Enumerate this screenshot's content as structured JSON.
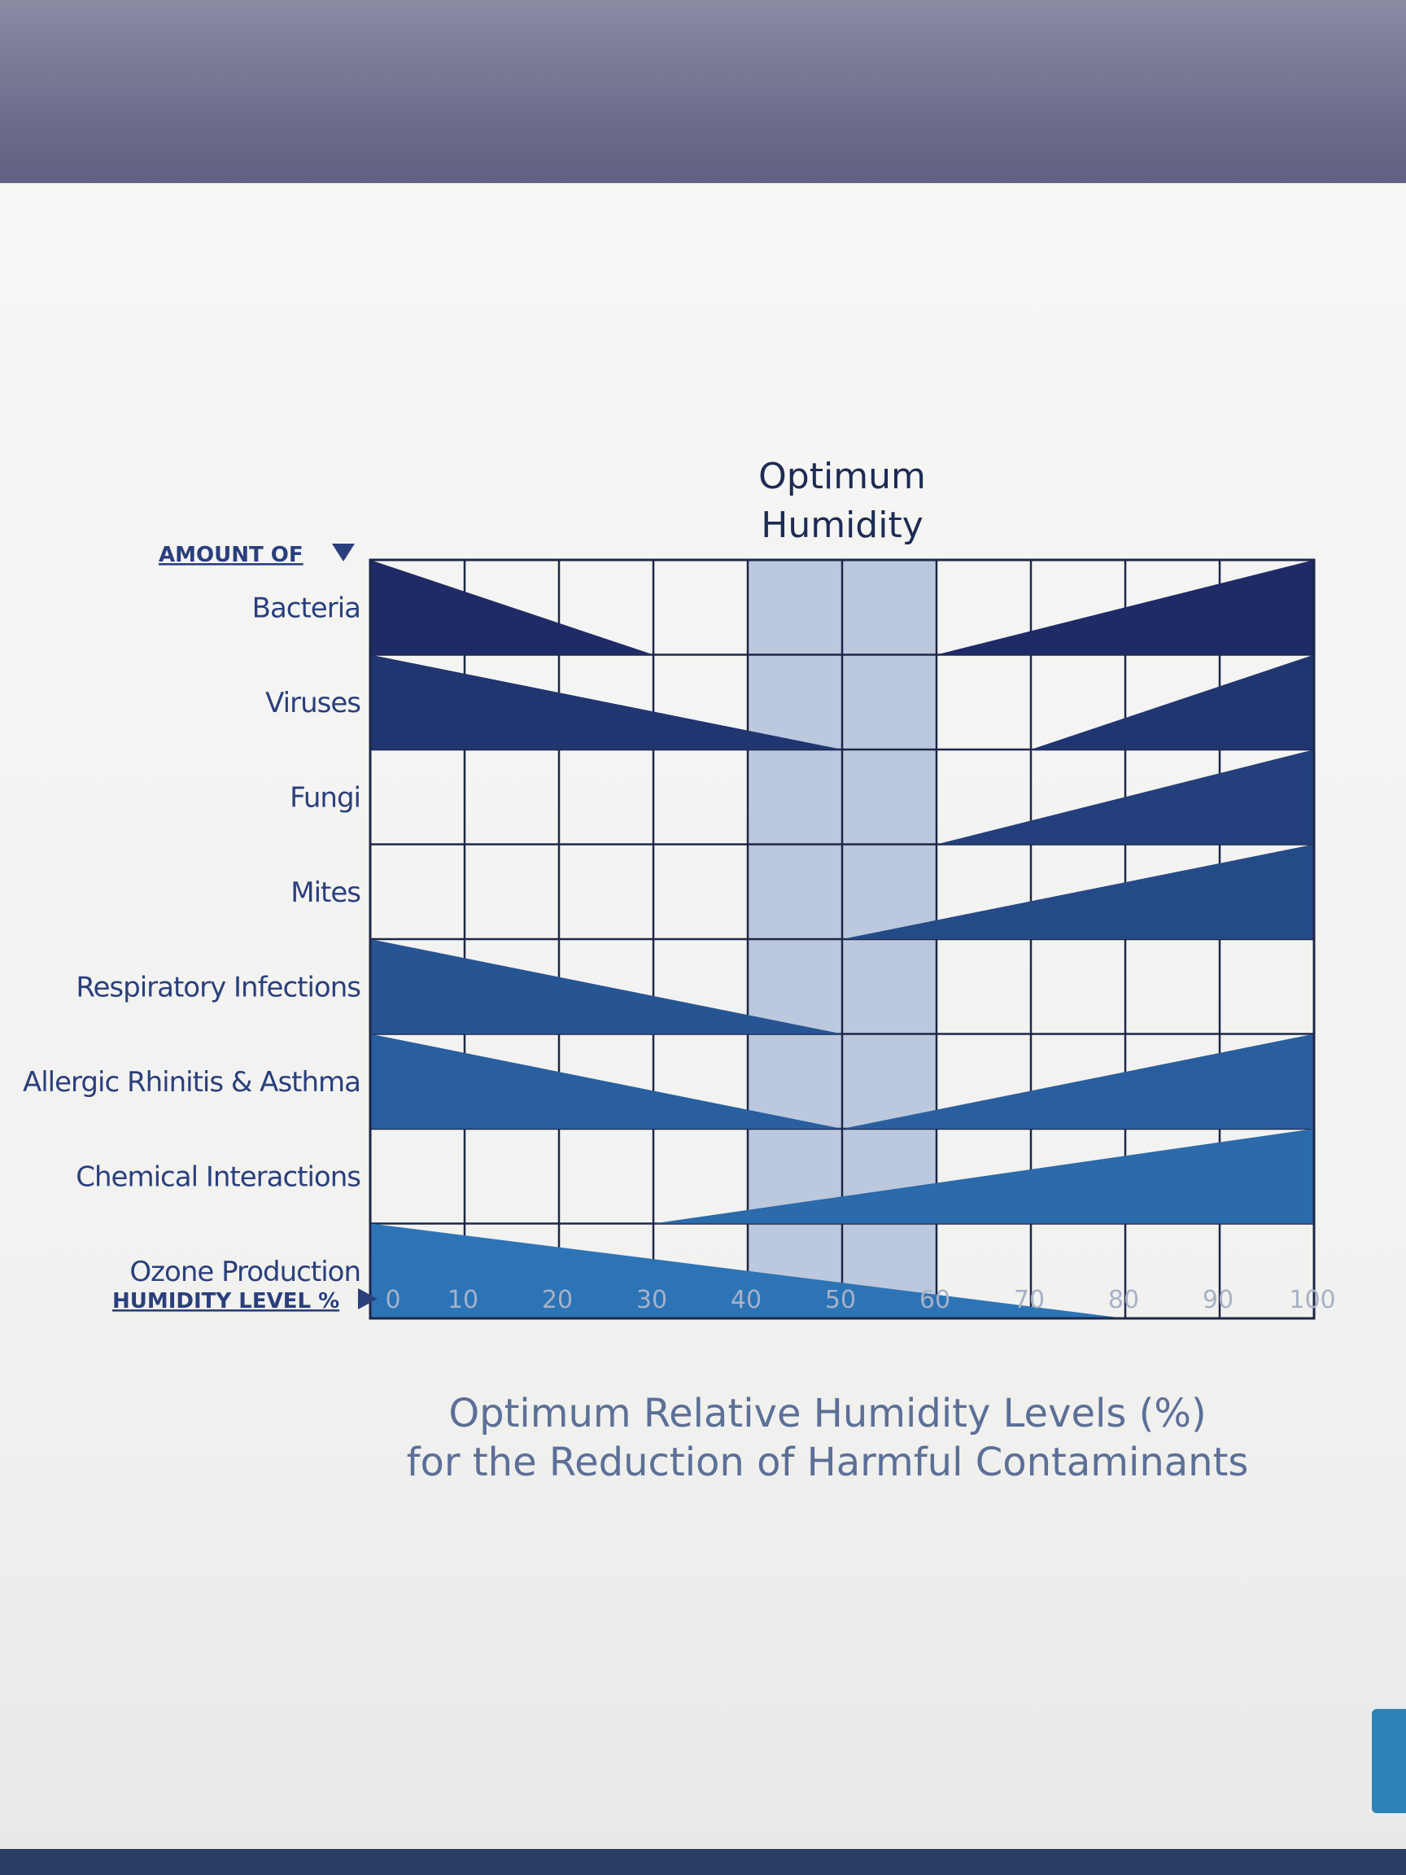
{
  "chart_data": {
    "type": "table",
    "title": "Optimum Relative Humidity Levels (%)",
    "subtitle": "for the Reduction of Harmful Contaminants",
    "band_label": [
      "Optimum",
      "Humidity"
    ],
    "optimum_band": [
      40,
      60
    ],
    "ylabel": "AMOUNT OF",
    "xlabel": "HUMIDITY LEVEL %",
    "x_ticks": [
      "0",
      "10",
      "20",
      "30",
      "40",
      "50",
      "60",
      "70",
      "80",
      "90",
      "100"
    ],
    "xlim": [
      0,
      100
    ],
    "series": [
      {
        "name": "Bacteria",
        "decrease_to": 30,
        "increase_from": 60
      },
      {
        "name": "Viruses",
        "decrease_to": 50,
        "increase_from": 70
      },
      {
        "name": "Fungi",
        "decrease_to": null,
        "increase_from": 60
      },
      {
        "name": "Mites",
        "decrease_to": null,
        "increase_from": 50
      },
      {
        "name": "Respiratory Infections",
        "decrease_to": 50,
        "increase_from": null
      },
      {
        "name": "Allergic Rhinitis & Asthma",
        "decrease_to": 50,
        "increase_from": 50
      },
      {
        "name": "Chemical Interactions",
        "decrease_to": null,
        "increase_from": 30
      },
      {
        "name": "Ozone Production",
        "decrease_to": 80,
        "increase_from": null
      }
    ],
    "colors": {
      "dark": "#1f2b66",
      "light": "#2d74b6",
      "band": "#bcc8de",
      "grid": "#1e2747"
    }
  }
}
